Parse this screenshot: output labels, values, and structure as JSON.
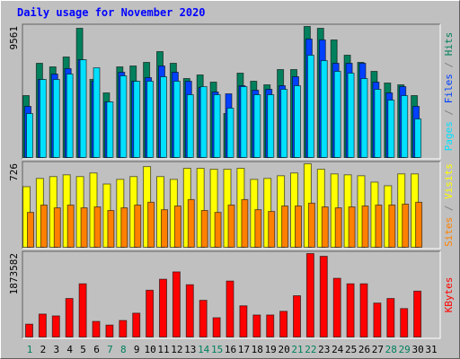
{
  "chart_data": [
    {
      "type": "bar",
      "title": "Daily usage for November 2020",
      "ylim": [
        0,
        9561
      ],
      "yticks": [
        9561
      ],
      "legend_separator": " / ",
      "series": [
        {
          "name": "Hits",
          "color": "#00805c",
          "values": [
            4553,
            6894,
            6634,
            7350,
            9431,
            5724,
            4748,
            6634,
            6699,
            6959,
            7740,
            6894,
            5789,
            6049,
            5528,
            3252,
            6179,
            5593,
            5333,
            6439,
            6439,
            9561,
            9431,
            8585,
            7480,
            6959,
            6309,
            5463,
            5333,
            4553,
            0
          ]
        },
        {
          "name": "Files",
          "color": "#0040ff",
          "values": [
            3772,
            5724,
            6114,
            6504,
            7154,
            5593,
            4098,
            6244,
            5593,
            5854,
            6699,
            6244,
            5593,
            5138,
            4813,
            4683,
            5268,
            4943,
            5008,
            5268,
            5919,
            8650,
            8585,
            6894,
            6894,
            6894,
            5528,
            4748,
            5203,
            3772,
            0
          ]
        },
        {
          "name": "Pages",
          "color": "#00e0ff",
          "values": [
            3252,
            5724,
            5724,
            6114,
            7154,
            6569,
            4098,
            5984,
            5593,
            5593,
            5919,
            5593,
            4618,
            5203,
            4618,
            3642,
            5203,
            4618,
            4618,
            5008,
            5268,
            7480,
            7089,
            6309,
            6179,
            5789,
            5008,
            4228,
            4553,
            2862,
            0
          ]
        }
      ]
    },
    {
      "type": "bar",
      "ylim": [
        0,
        726
      ],
      "yticks": [
        726
      ],
      "legend_separator": " / ",
      "series": [
        {
          "name": "Visits",
          "color": "#ffff00",
          "values": [
            529,
            600,
            616,
            631,
            616,
            647,
            552,
            592,
            616,
            702,
            616,
            592,
            687,
            687,
            679,
            679,
            687,
            592,
            600,
            623,
            647,
            726,
            679,
            639,
            631,
            623,
            568,
            537,
            639,
            639,
            0
          ]
        },
        {
          "name": "Sites",
          "color": "#ff8000",
          "values": [
            308,
            371,
            347,
            371,
            347,
            355,
            324,
            347,
            371,
            395,
            331,
            363,
            418,
            324,
            308,
            371,
            418,
            331,
            316,
            363,
            363,
            387,
            355,
            347,
            355,
            363,
            371,
            371,
            379,
            395,
            0
          ]
        }
      ]
    },
    {
      "type": "bar",
      "ylim": [
        0,
        1873582
      ],
      "yticks": [
        1873582
      ],
      "series": [
        {
          "name": "KBytes",
          "color": "#ff0000",
          "values": [
            305475,
            529490,
            488760,
            875695,
            1201535,
            366570,
            285110,
            386935,
            549855,
            1058980,
            1303360,
            1466280,
            1181170,
            834965,
            448030,
            1262630,
            712775,
            509125,
            509125,
            590585,
            936790,
            1873582,
            1812485,
            1323725,
            1201535,
            1201535,
            773870,
            875695,
            651680,
            1038615,
            0
          ]
        }
      ],
      "categories": [
        "1",
        "2",
        "3",
        "4",
        "5",
        "6",
        "7",
        "8",
        "9",
        "10",
        "11",
        "12",
        "13",
        "14",
        "15",
        "16",
        "17",
        "18",
        "19",
        "20",
        "21",
        "22",
        "23",
        "24",
        "25",
        "26",
        "27",
        "28",
        "29",
        "30",
        "31"
      ],
      "highlight_categories": [
        1,
        7,
        8,
        14,
        15,
        21,
        22,
        28,
        29
      ],
      "highlight_color": "#00805c"
    }
  ]
}
